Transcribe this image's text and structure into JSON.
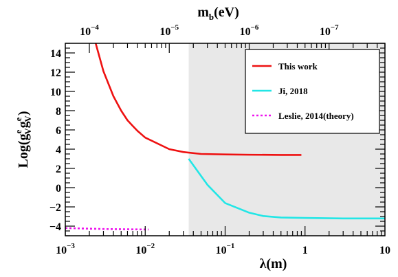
{
  "chart_data": {
    "type": "line",
    "x_scale": "log",
    "y_scale": "linear",
    "xlabel": "λ(m)",
    "xlim": [
      0.001,
      10
    ],
    "ylim": [
      -5,
      15
    ],
    "ylabel_base": "Log(g",
    "ylabel_sup1": "e",
    "ylabel_sub1": "V",
    "ylabel_mid": "g",
    "ylabel_sup2": "e",
    "ylabel_sub2": "V",
    "ylabel_close": ")",
    "top_axis_label_base": "m",
    "top_axis_label_sub": "b",
    "top_axis_label_unit": "(eV)",
    "x_ticks": [
      {
        "value": 0.001,
        "base": "10",
        "exp": "−3"
      },
      {
        "value": 0.01,
        "base": "10",
        "exp": "−2"
      },
      {
        "value": 0.1,
        "base": "10",
        "exp": "−1"
      },
      {
        "value": 1,
        "base": "1",
        "exp": ""
      },
      {
        "value": 10,
        "base": "10",
        "exp": ""
      }
    ],
    "top_ticks": [
      {
        "value": 0.002,
        "base": "10",
        "exp": "−4"
      },
      {
        "value": 0.02,
        "base": "10",
        "exp": "−5"
      },
      {
        "value": 0.2,
        "base": "10",
        "exp": "−6"
      },
      {
        "value": 2,
        "base": "10",
        "exp": "−7"
      }
    ],
    "y_ticks": [
      -4,
      -2,
      0,
      2,
      4,
      6,
      8,
      10,
      12,
      14
    ],
    "excluded_region": {
      "x_from": 0.035,
      "x_to": 10,
      "color": "#e8e8e8"
    },
    "series": [
      {
        "name": "This work",
        "color": "#ee1111",
        "dash": "solid",
        "points": [
          [
            0.0024,
            15.0
          ],
          [
            0.003,
            12.1
          ],
          [
            0.004,
            9.5
          ],
          [
            0.005,
            8.0
          ],
          [
            0.006,
            7.0
          ],
          [
            0.007,
            6.4
          ],
          [
            0.008,
            5.9
          ],
          [
            0.01,
            5.2
          ],
          [
            0.02,
            4.0
          ],
          [
            0.03,
            3.7
          ],
          [
            0.05,
            3.5
          ],
          [
            0.1,
            3.45
          ],
          [
            0.2,
            3.42
          ],
          [
            0.5,
            3.4
          ],
          [
            0.9,
            3.4
          ]
        ]
      },
      {
        "name": "Ji, 2018",
        "color": "#22e6e6",
        "dash": "solid",
        "points": [
          [
            0.035,
            3.0
          ],
          [
            0.06,
            0.3
          ],
          [
            0.1,
            -1.6
          ],
          [
            0.2,
            -2.6
          ],
          [
            0.3,
            -2.95
          ],
          [
            0.5,
            -3.1
          ],
          [
            1,
            -3.15
          ],
          [
            3,
            -3.2
          ],
          [
            10,
            -3.2
          ]
        ]
      },
      {
        "name": "Leslie, 2014(theory)",
        "color": "#ee11ee",
        "dash": "dotted",
        "points": [
          [
            0.001,
            -4.2
          ],
          [
            0.003,
            -4.3
          ],
          [
            0.011,
            -4.35
          ]
        ]
      }
    ],
    "legend_position": "top-right"
  }
}
